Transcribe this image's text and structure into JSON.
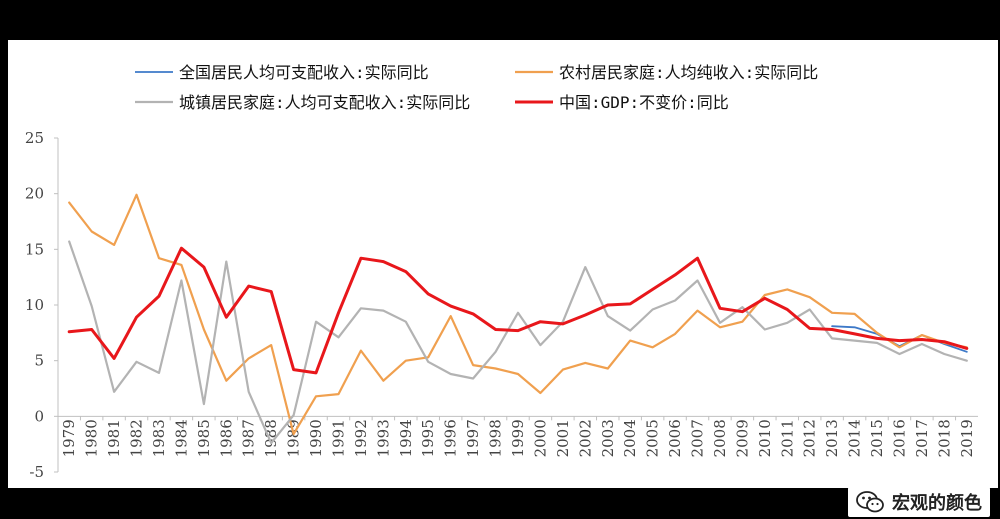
{
  "header": {
    "title": ""
  },
  "footer": {
    "source": "",
    "brand": "宏观的颜色"
  },
  "colors": {
    "national": "#3d79c8",
    "rural": "#f0a04f",
    "urban": "#b3b3b3",
    "gdp": "#e8171b",
    "axis": "#c0c0c0",
    "text": "#444444"
  },
  "chart_data": {
    "type": "line",
    "title": "",
    "xlabel": "",
    "ylabel": "",
    "ylim": [
      -5,
      25
    ],
    "yticks": [
      -5,
      0,
      5,
      10,
      15,
      20,
      25
    ],
    "grid": false,
    "legend_position": "top",
    "x": [
      "1979",
      "1980",
      "1981",
      "1982",
      "1983",
      "1984",
      "1985",
      "1986",
      "1987",
      "1988",
      "1989",
      "1990",
      "1991",
      "1992",
      "1993",
      "1994",
      "1995",
      "1996",
      "1997",
      "1998",
      "1999",
      "2000",
      "2001",
      "2002",
      "2003",
      "2004",
      "2005",
      "2006",
      "2007",
      "2008",
      "2009",
      "2010",
      "2011",
      "2012",
      "2013",
      "2014",
      "2015",
      "2016",
      "2017",
      "2018",
      "2019"
    ],
    "series": [
      {
        "name": "全国居民人均可支配收入:实际同比",
        "color": "#3d79c8",
        "width": 1.8,
        "values": [
          null,
          null,
          null,
          null,
          null,
          null,
          null,
          null,
          null,
          null,
          null,
          null,
          null,
          null,
          null,
          null,
          null,
          null,
          null,
          null,
          null,
          null,
          null,
          null,
          null,
          null,
          null,
          null,
          null,
          null,
          null,
          null,
          null,
          null,
          8.1,
          8.0,
          7.4,
          6.3,
          7.3,
          6.5,
          5.8
        ]
      },
      {
        "name": "农村居民家庭:人均纯收入:实际同比",
        "color": "#f0a04f",
        "width": 2.2,
        "values": [
          19.2,
          16.6,
          15.4,
          19.9,
          14.2,
          13.6,
          7.8,
          3.2,
          5.2,
          6.4,
          -1.6,
          1.8,
          2.0,
          5.9,
          3.2,
          5.0,
          5.3,
          9.0,
          4.6,
          4.3,
          3.8,
          2.1,
          4.2,
          4.8,
          4.3,
          6.8,
          6.2,
          7.4,
          9.5,
          8.0,
          8.5,
          10.9,
          11.4,
          10.7,
          9.3,
          9.2,
          7.5,
          6.2,
          7.3,
          6.6,
          6.2
        ]
      },
      {
        "name": "城镇居民家庭:人均可支配收入:实际同比",
        "color": "#b3b3b3",
        "width": 2.2,
        "values": [
          15.7,
          9.9,
          2.2,
          4.9,
          3.9,
          12.2,
          1.1,
          13.9,
          2.2,
          -2.4,
          0.1,
          8.5,
          7.1,
          9.7,
          9.5,
          8.5,
          4.9,
          3.8,
          3.4,
          5.8,
          9.3,
          6.4,
          8.5,
          13.4,
          9.0,
          7.7,
          9.6,
          10.4,
          12.2,
          8.4,
          9.8,
          7.8,
          8.4,
          9.6,
          7.0,
          6.8,
          6.6,
          5.6,
          6.5,
          5.6,
          5.0
        ]
      },
      {
        "name": "中国:GDP:不变价:同比",
        "color": "#e8171b",
        "width": 3,
        "values": [
          7.6,
          7.8,
          5.2,
          8.9,
          10.8,
          15.1,
          13.4,
          8.9,
          11.7,
          11.2,
          4.2,
          3.9,
          9.3,
          14.2,
          13.9,
          13.0,
          11.0,
          9.9,
          9.2,
          7.8,
          7.7,
          8.5,
          8.3,
          9.1,
          10.0,
          10.1,
          11.4,
          12.7,
          14.2,
          9.7,
          9.4,
          10.6,
          9.6,
          7.9,
          7.8,
          7.4,
          7.0,
          6.8,
          6.9,
          6.7,
          6.1
        ]
      }
    ]
  }
}
